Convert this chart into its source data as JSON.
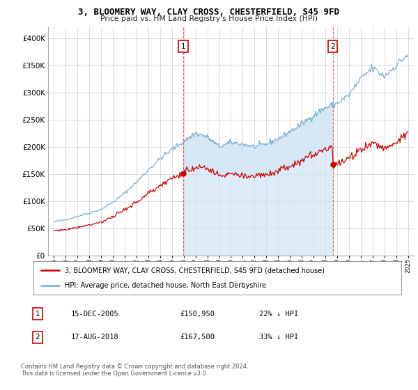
{
  "title": "3, BLOOMERY WAY, CLAY CROSS, CHESTERFIELD, S45 9FD",
  "subtitle": "Price paid vs. HM Land Registry's House Price Index (HPI)",
  "ytick_values": [
    0,
    50000,
    100000,
    150000,
    200000,
    250000,
    300000,
    350000,
    400000
  ],
  "ylim": [
    0,
    420000
  ],
  "xlim_start": 1994.5,
  "xlim_end": 2025.5,
  "hpi_color": "#7bafd4",
  "hpi_fill_color": "#d0e4f5",
  "price_color": "#cc0000",
  "marker1_year": 2005.96,
  "marker1_price": 150950,
  "marker2_year": 2018.63,
  "marker2_price": 167500,
  "legend_label_red": "3, BLOOMERY WAY, CLAY CROSS, CHESTERFIELD, S45 9FD (detached house)",
  "legend_label_blue": "HPI: Average price, detached house, North East Derbyshire",
  "transaction1_date": "15-DEC-2005",
  "transaction1_price": "£150,950",
  "transaction1_hpi": "22% ↓ HPI",
  "transaction2_date": "17-AUG-2018",
  "transaction2_price": "£167,500",
  "transaction2_hpi": "33% ↓ HPI",
  "footnote": "Contains HM Land Registry data © Crown copyright and database right 2024.\nThis data is licensed under the Open Government Licence v3.0.",
  "background_color": "#ffffff",
  "grid_color": "#cccccc",
  "hpi_key_years": [
    1995,
    1996,
    1997,
    1998,
    1999,
    2000,
    2001,
    2002,
    2003,
    2004,
    2005,
    2006,
    2007,
    2008,
    2009,
    2010,
    2011,
    2012,
    2013,
    2014,
    2015,
    2016,
    2017,
    2018,
    2019,
    2020,
    2021,
    2022,
    2023,
    2024,
    2025
  ],
  "hpi_key_values": [
    62000,
    66000,
    72000,
    78000,
    85000,
    98000,
    115000,
    135000,
    158000,
    178000,
    195000,
    210000,
    225000,
    218000,
    200000,
    208000,
    205000,
    200000,
    205000,
    215000,
    228000,
    242000,
    258000,
    272000,
    280000,
    295000,
    325000,
    345000,
    330000,
    350000,
    370000
  ]
}
